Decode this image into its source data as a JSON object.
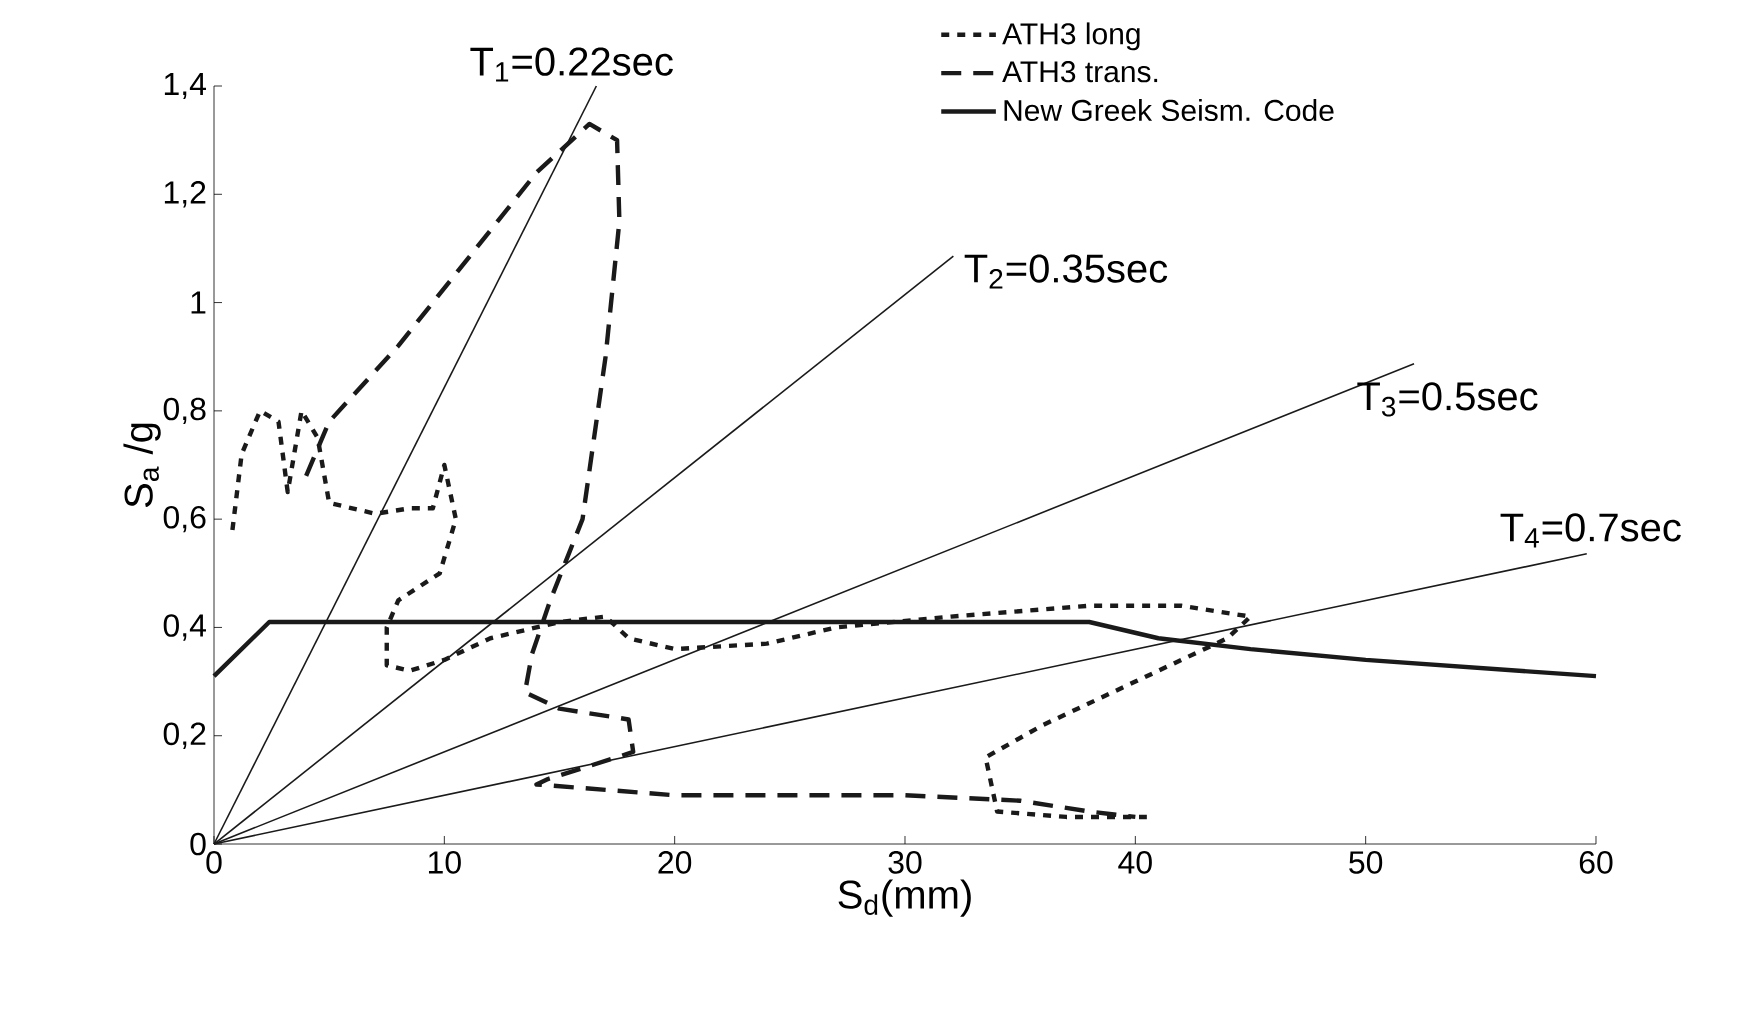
{
  "chart_data": {
    "type": "line",
    "xlabel": "S$_{d}$(mm)",
    "ylabel": "S$_{a}$ /g",
    "xlim": [
      0,
      60
    ],
    "xticks": [
      0,
      10,
      20,
      30,
      40,
      50,
      60
    ],
    "ylim": [
      0,
      1.4
    ],
    "yticks": [
      0,
      {
        "value": 0.2,
        "label": "0,2"
      },
      {
        "value": 0.4,
        "label": "0,4"
      },
      {
        "value": 0.6,
        "label": "0,6"
      },
      {
        "value": 0.8,
        "label": "0,8"
      },
      {
        "value": 1,
        "label": "1"
      },
      {
        "value": 1.2,
        "label": "1,2"
      },
      {
        "value": 1.4,
        "label": "1,4"
      }
    ],
    "grid": false,
    "legend": "top right",
    "series": [
      {
        "name": "ATH3 long",
        "color": "#1a1a1a",
        "line_style": "dotted",
        "x": [
          0.8,
          1.2,
          2,
          2.8,
          3.2,
          3.8,
          4.5,
          5,
          7,
          8.5,
          9.5,
          10,
          10.5,
          9.8,
          8,
          7.5,
          7.5,
          8.5,
          10,
          12,
          15,
          17,
          18,
          20,
          24,
          27,
          32,
          38,
          42,
          45,
          44,
          40,
          36,
          33.5,
          34,
          37,
          40.5
        ],
        "values": [
          0.58,
          0.72,
          0.8,
          0.78,
          0.65,
          0.8,
          0.75,
          0.63,
          0.61,
          0.62,
          0.62,
          0.7,
          0.6,
          0.5,
          0.45,
          0.4,
          0.33,
          0.32,
          0.34,
          0.38,
          0.41,
          0.42,
          0.38,
          0.36,
          0.37,
          0.4,
          0.42,
          0.44,
          0.44,
          0.42,
          0.38,
          0.3,
          0.22,
          0.16,
          0.06,
          0.05,
          0.05
        ]
      },
      {
        "name": "ATH3 trans.",
        "color": "#1a1a1a",
        "line_style": "dashed",
        "x": [
          4,
          5,
          8,
          11,
          14,
          16.3,
          17.5,
          17.6,
          17,
          16,
          14.6,
          13.8,
          13.5,
          15,
          18,
          18.2,
          16,
          14.5,
          14,
          20,
          30,
          35,
          38,
          40
        ],
        "values": [
          0.68,
          0.78,
          0.92,
          1.08,
          1.24,
          1.33,
          1.3,
          1.15,
          0.9,
          0.6,
          0.45,
          0.35,
          0.28,
          0.25,
          0.23,
          0.17,
          0.14,
          0.12,
          0.11,
          0.09,
          0.09,
          0.08,
          0.06,
          0.05
        ]
      },
      {
        "name": "New Greek Seism. Code",
        "color": "#1a1a1a",
        "line_style": "solid",
        "x": [
          0,
          2.4,
          38,
          41,
          45,
          50,
          60
        ],
        "values": [
          0.31,
          0.41,
          0.41,
          0.38,
          0.36,
          0.34,
          0.31
        ]
      },
      {
        "color": "#1a1a1a",
        "line_style": "solid",
        "x": [
          0,
          16.6
        ],
        "values": [
          0,
          1.4
        ]
      },
      {
        "color": "#1a1a1a",
        "line_style": "solid",
        "x": [
          0,
          32.1
        ],
        "values": [
          0,
          1.086
        ]
      },
      {
        "color": "#1a1a1a",
        "line_style": "solid",
        "x": [
          0,
          52.1
        ],
        "values": [
          0,
          0.887
        ]
      },
      {
        "color": "#1a1a1a",
        "line_style": "solid",
        "x": [
          0,
          59.6
        ],
        "values": [
          0,
          0.536
        ]
      }
    ],
    "annotations": [
      {
        "text": "T$_{1}$=0.22sec",
        "x": 16.6,
        "y": 1.4
      },
      {
        "text": "T$_{2}$=0.35sec",
        "x": 32.1,
        "y": 1.086
      },
      {
        "text": "T$_{3}$=0.5sec",
        "x": 52.1,
        "y": 0.887
      },
      {
        "text": "T$_{4}$=0.7sec",
        "x": 59.6,
        "y": 0.536
      }
    ]
  }
}
